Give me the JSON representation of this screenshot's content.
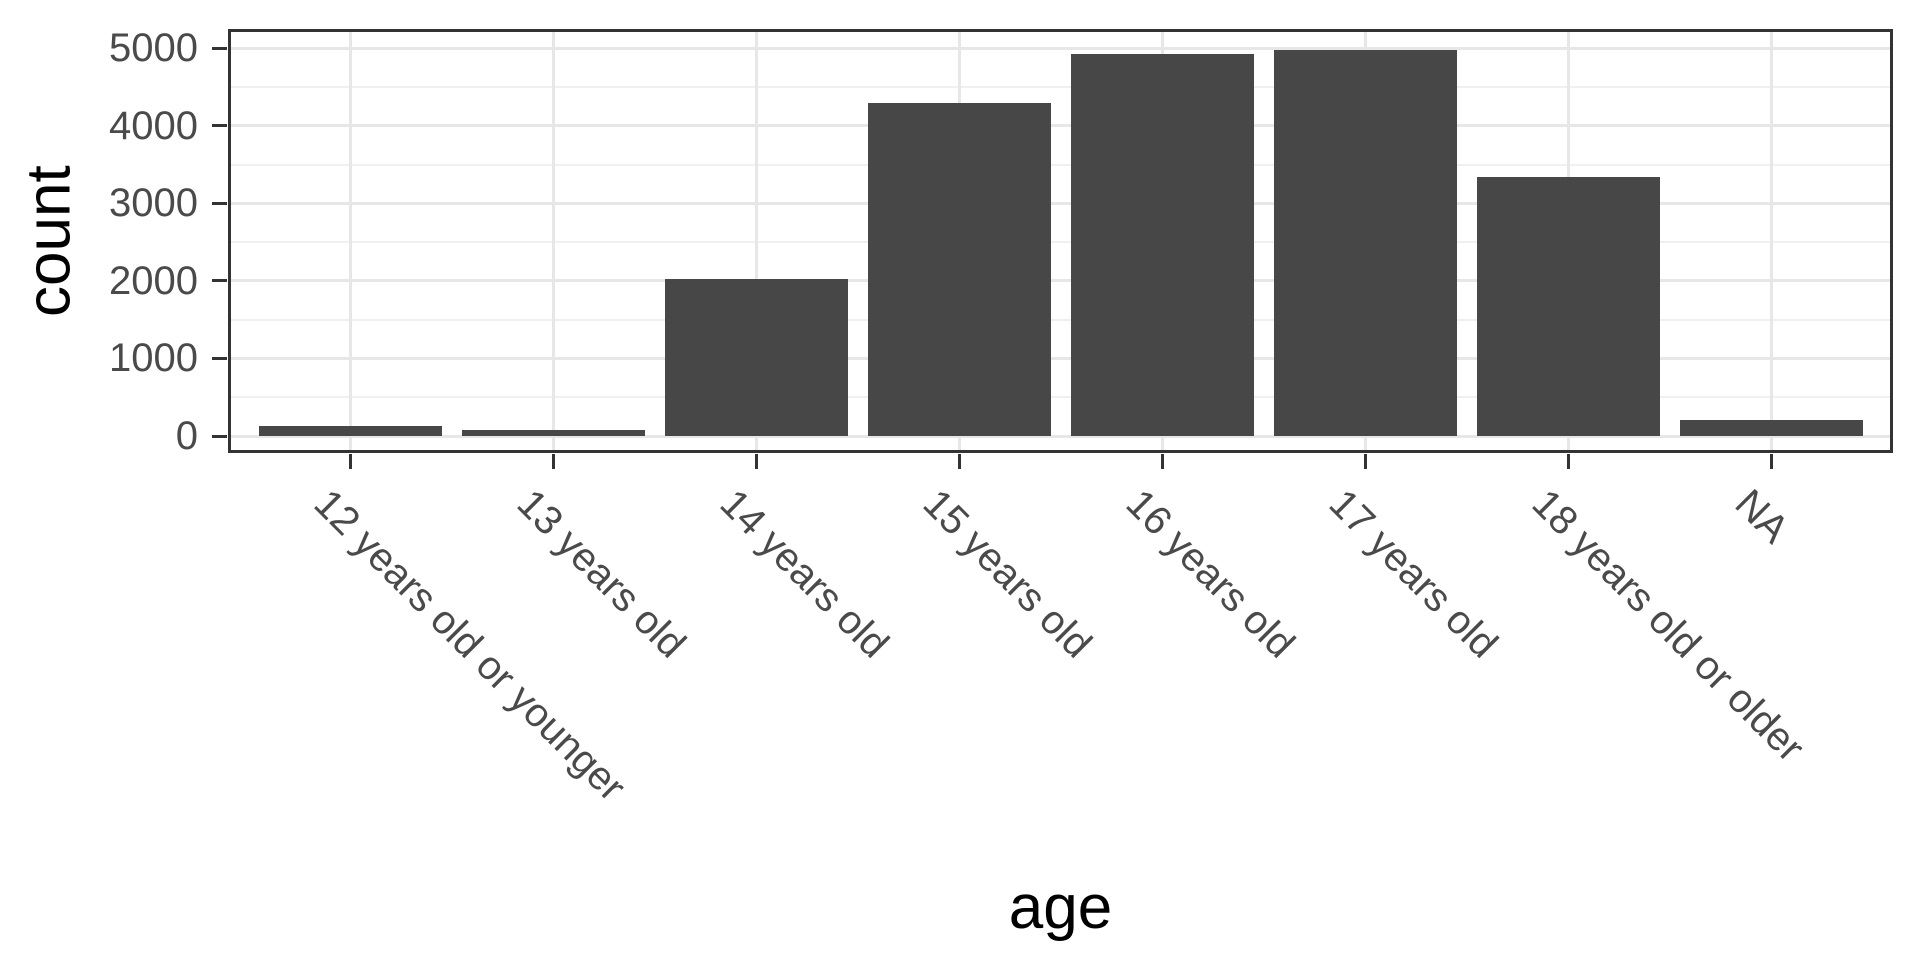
{
  "chart_data": {
    "type": "bar",
    "title": "",
    "xlabel": "age",
    "ylabel": "count",
    "categories": [
      "12 years old or younger",
      "13 years old",
      "14 years old",
      "15 years old",
      "16 years old",
      "17 years old",
      "18 years old or older",
      "NA"
    ],
    "values": [
      130,
      80,
      2030,
      4300,
      4930,
      4980,
      3340,
      200
    ],
    "y_ticks": [
      0,
      1000,
      2000,
      3000,
      4000,
      5000
    ],
    "y_minor_ticks": [
      500,
      1500,
      2500,
      3500,
      4500
    ],
    "ylim": [
      -250,
      5250
    ],
    "x_tick_angle_deg": 45,
    "grid": "horizontal major+minor, vertical major at categories",
    "legend_position": "none",
    "colors": {
      "bar_fill": "#474747",
      "panel_background": "#ffffff",
      "grid_major": "#e7e7e7",
      "grid_minor": "#f0f0f0",
      "panel_border": "#333333",
      "tick_mark": "#333333",
      "axis_text": "#4a4a4a",
      "axis_title": "#000000"
    }
  }
}
